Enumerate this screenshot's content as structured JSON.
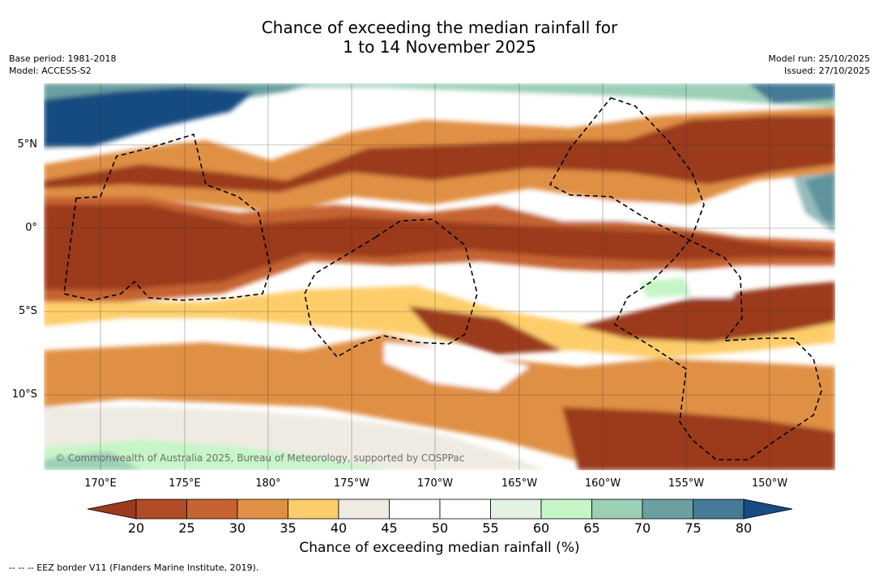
{
  "title": {
    "line1": "Chance of exceeding the median rainfall for",
    "line2": "1 to 14 November 2025"
  },
  "meta": {
    "base_period": "Base period: 1981-2018",
    "model": "Model: ACCESS-S2",
    "model_run": "Model run: 25/10/2025",
    "issued": "Issued: 27/10/2025"
  },
  "map": {
    "lat_labels": [
      "5°N",
      "0°",
      "5°S",
      "10°S"
    ],
    "lon_labels": [
      "170°E",
      "175°E",
      "180°",
      "175°W",
      "170°W",
      "165°W",
      "160°W",
      "155°W",
      "150°W"
    ],
    "copyright": "© Commonwealth of Australia 2025, Bureau of Meteorology, supported by COSPPac"
  },
  "colorbar": {
    "title": "Chance of exceeding median rainfall (%)",
    "labels": [
      "20",
      "25",
      "30",
      "35",
      "40",
      "45",
      "50",
      "55",
      "60",
      "65",
      "70",
      "75",
      "80"
    ],
    "colors": [
      "#9b3a1f",
      "#b24b27",
      "#c66330",
      "#e09044",
      "#fdcd6a",
      "#efebe3",
      "#ffffff",
      "#ffffff",
      "#e4f2e4",
      "#c6f5c8",
      "#9bcfb6",
      "#6b9fa0",
      "#467a96",
      "#174b82"
    ]
  },
  "legend": {
    "eez": "--  --  -- EEZ border V11 (Flanders Marine Institute, 2019)."
  }
}
